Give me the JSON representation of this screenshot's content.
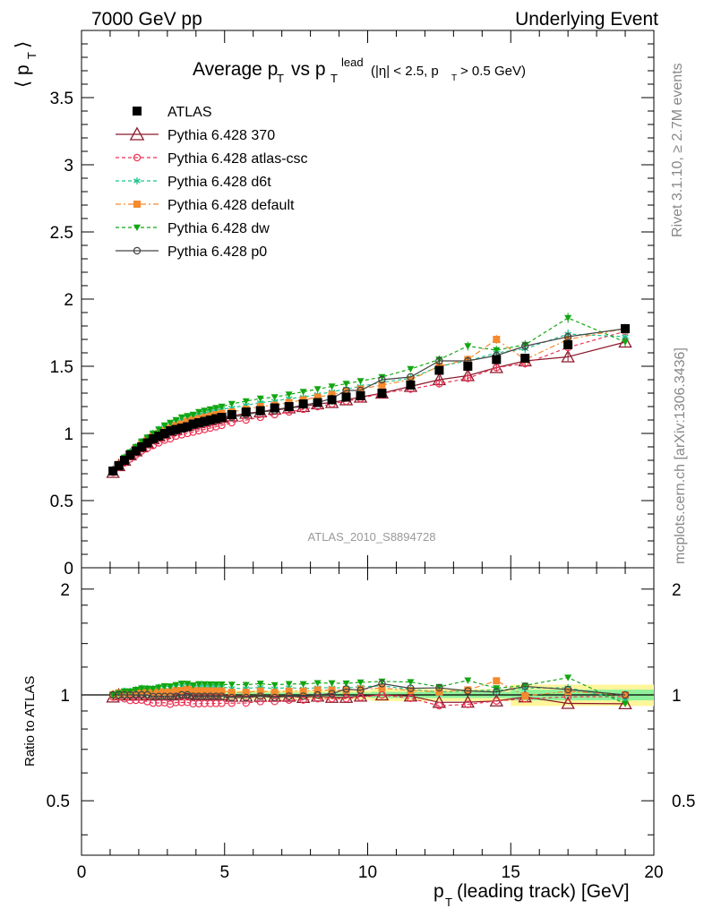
{
  "header": {
    "left": "7000 GeV pp",
    "right": "Underlying Event"
  },
  "side_labels": {
    "rivet": "Rivet 3.1.10, ≥ 2.7M events",
    "mcplots": "mcplots.cern.ch [arXiv:1306.3436]"
  },
  "analysis_id": "ATLAS_2010_S8894728",
  "chart_data": [
    {
      "type": "scatter",
      "title": "Average p_T vs p_T^lead (|η| < 2.5, p_T > 0.5 GeV)",
      "ylabel": "⟨ p_T ⟩",
      "xlabel": "p_T (leading track) [GeV]",
      "xlim": [
        0,
        20
      ],
      "ylim": [
        0,
        4
      ],
      "yticks": [
        "0.5",
        "1",
        "1.5",
        "2",
        "2.5",
        "3",
        "3.5"
      ],
      "xticks": [
        "0",
        "5",
        "10",
        "15",
        "20"
      ],
      "x": [
        1.1,
        1.3,
        1.5,
        1.7,
        1.9,
        2.1,
        2.3,
        2.5,
        2.7,
        2.9,
        3.1,
        3.3,
        3.5,
        3.7,
        3.9,
        4.1,
        4.3,
        4.5,
        4.7,
        4.9,
        5.25,
        5.75,
        6.25,
        6.75,
        7.25,
        7.75,
        8.25,
        8.75,
        9.25,
        9.75,
        10.5,
        11.5,
        12.5,
        13.5,
        14.5,
        15.5,
        17,
        19
      ],
      "series": [
        {
          "name": "ATLAS",
          "color": "#000000",
          "marker": "square",
          "values": [
            0.72,
            0.76,
            0.8,
            0.84,
            0.87,
            0.9,
            0.93,
            0.96,
            0.98,
            1.0,
            1.02,
            1.03,
            1.04,
            1.05,
            1.07,
            1.08,
            1.09,
            1.1,
            1.11,
            1.12,
            1.14,
            1.16,
            1.17,
            1.19,
            1.2,
            1.22,
            1.23,
            1.25,
            1.27,
            1.28,
            1.3,
            1.36,
            1.47,
            1.5,
            1.55,
            1.56,
            1.66,
            1.78
          ]
        },
        {
          "name": "Pythia 6.428 370",
          "color": "#8b1a2b",
          "marker": "triangle-open",
          "dash": "",
          "values": [
            0.71,
            0.76,
            0.8,
            0.84,
            0.87,
            0.9,
            0.93,
            0.96,
            0.98,
            1.0,
            1.02,
            1.03,
            1.05,
            1.06,
            1.07,
            1.08,
            1.09,
            1.1,
            1.11,
            1.12,
            1.13,
            1.15,
            1.16,
            1.18,
            1.19,
            1.2,
            1.22,
            1.23,
            1.25,
            1.27,
            1.3,
            1.35,
            1.4,
            1.43,
            1.49,
            1.54,
            1.57,
            1.68
          ]
        },
        {
          "name": "Pythia 6.428 atlas-csc",
          "color": "#ee3355",
          "marker": "circle-open",
          "dash": "4,3",
          "values": [
            0.71,
            0.75,
            0.78,
            0.81,
            0.84,
            0.87,
            0.89,
            0.91,
            0.93,
            0.95,
            0.96,
            0.98,
            0.99,
            1.0,
            1.01,
            1.02,
            1.03,
            1.04,
            1.05,
            1.06,
            1.08,
            1.1,
            1.12,
            1.14,
            1.16,
            1.18,
            1.2,
            1.22,
            1.24,
            1.26,
            1.3,
            1.33,
            1.37,
            1.41,
            1.49,
            1.52,
            1.64,
            1.76
          ]
        },
        {
          "name": "Pythia 6.428 d6t",
          "color": "#1fc48f",
          "marker": "star",
          "dash": "4,3",
          "values": [
            0.72,
            0.77,
            0.82,
            0.86,
            0.9,
            0.94,
            0.97,
            1.0,
            1.03,
            1.05,
            1.07,
            1.09,
            1.1,
            1.12,
            1.13,
            1.14,
            1.15,
            1.16,
            1.17,
            1.18,
            1.19,
            1.21,
            1.23,
            1.24,
            1.26,
            1.27,
            1.29,
            1.31,
            1.33,
            1.35,
            1.38,
            1.41,
            1.5,
            1.54,
            1.6,
            1.63,
            1.74,
            1.72
          ]
        },
        {
          "name": "Pythia 6.428 default",
          "color": "#f58a2e",
          "marker": "square",
          "dash": "6,3,2,3",
          "values": [
            0.72,
            0.77,
            0.81,
            0.85,
            0.89,
            0.92,
            0.95,
            0.98,
            1.0,
            1.02,
            1.04,
            1.06,
            1.07,
            1.09,
            1.1,
            1.11,
            1.12,
            1.13,
            1.14,
            1.15,
            1.16,
            1.18,
            1.2,
            1.21,
            1.23,
            1.25,
            1.27,
            1.29,
            1.31,
            1.33,
            1.36,
            1.4,
            1.5,
            1.55,
            1.7,
            1.55,
            1.7,
            1.78
          ]
        },
        {
          "name": "Pythia 6.428 dw",
          "color": "#12a612",
          "marker": "triangle-down",
          "dash": "4,3",
          "values": [
            0.72,
            0.77,
            0.82,
            0.86,
            0.9,
            0.94,
            0.97,
            1.0,
            1.03,
            1.06,
            1.08,
            1.1,
            1.12,
            1.13,
            1.14,
            1.16,
            1.17,
            1.18,
            1.19,
            1.2,
            1.22,
            1.24,
            1.26,
            1.27,
            1.29,
            1.31,
            1.33,
            1.35,
            1.37,
            1.39,
            1.42,
            1.48,
            1.55,
            1.65,
            1.62,
            1.66,
            1.86,
            1.68
          ]
        },
        {
          "name": "Pythia 6.428 p0",
          "color": "#444444",
          "marker": "circle-open",
          "dash": "",
          "values": [
            0.72,
            0.76,
            0.8,
            0.84,
            0.87,
            0.9,
            0.93,
            0.95,
            0.97,
            0.99,
            1.01,
            1.02,
            1.04,
            1.05,
            1.06,
            1.07,
            1.08,
            1.09,
            1.1,
            1.11,
            1.12,
            1.14,
            1.16,
            1.17,
            1.19,
            1.21,
            1.23,
            1.26,
            1.32,
            1.32,
            1.4,
            1.42,
            1.54,
            1.54,
            1.58,
            1.65,
            1.72,
            1.78
          ]
        }
      ]
    },
    {
      "type": "scatter",
      "ylabel": "Ratio to ATLAS",
      "xlim": [
        0,
        20
      ],
      "ylim": [
        0.35,
        2.3
      ],
      "yscale": "log",
      "yticks": [
        "0.5",
        "1",
        "2"
      ],
      "xticks": [
        "0",
        "5",
        "10",
        "15",
        "20"
      ],
      "band_note": "uncertainty bands around 1"
    }
  ]
}
